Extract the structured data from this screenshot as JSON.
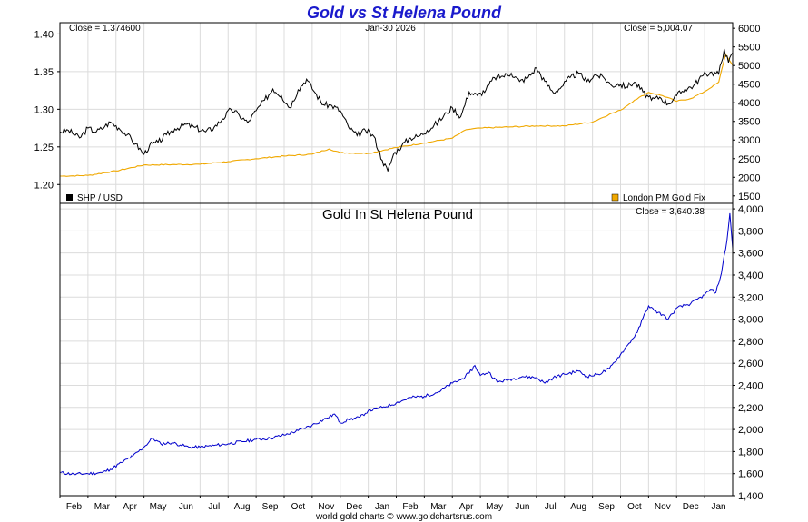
{
  "chart_data": {
    "title": "Gold vs St Helena Pound",
    "footer": "world gold charts © www.goldchartsrus.com",
    "months": [
      "Feb",
      "Mar",
      "Apr",
      "May",
      "Jun",
      "Jul",
      "Aug",
      "Sep",
      "Oct",
      "Nov",
      "Dec",
      "Jan",
      "Feb",
      "Mar",
      "Apr",
      "May",
      "Jun",
      "Jul",
      "Aug",
      "Sep",
      "Oct",
      "Nov",
      "Dec",
      "Jan"
    ],
    "charts": [
      {
        "type": "line",
        "name": "top-panel",
        "left_axis": {
          "min": 1.175,
          "max": 1.415,
          "ticks": [
            1.4,
            1.35,
            1.3,
            1.25,
            1.2
          ],
          "tick_labels": [
            "1.40",
            "1.35",
            "1.30",
            "1.25",
            "1.20"
          ]
        },
        "right_axis": {
          "min": 1300,
          "max": 6150,
          "ticks": [
            6000,
            5500,
            5000,
            4500,
            4000,
            3500,
            3000,
            2500,
            2000,
            1500
          ],
          "tick_labels": [
            "6000",
            "5500",
            "5000",
            "4500",
            "4000",
            "3500",
            "3000",
            "2500",
            "2000",
            "1500"
          ]
        },
        "close_left_label": "Close = 1.374600",
        "date_label": "Jan-30  2026",
        "close_right_label": "Close = 5,004.07",
        "legend": [
          {
            "label": "SHP / USD",
            "color": "#000000"
          },
          {
            "label": "London PM Gold Fix",
            "color": "#f0a800"
          }
        ],
        "series": [
          {
            "name": "SHP / USD",
            "axis": "left",
            "color": "#000000",
            "points": [
              [
                0,
                1.27
              ],
              [
                0.3,
                1.272
              ],
              [
                0.7,
                1.262
              ],
              [
                1.0,
                1.275
              ],
              [
                1.3,
                1.27
              ],
              [
                1.6,
                1.277
              ],
              [
                1.8,
                1.283
              ],
              [
                2.1,
                1.275
              ],
              [
                2.4,
                1.266
              ],
              [
                2.7,
                1.254
              ],
              [
                3.0,
                1.24
              ],
              [
                3.2,
                1.252
              ],
              [
                3.5,
                1.256
              ],
              [
                3.8,
                1.266
              ],
              [
                4.1,
                1.274
              ],
              [
                4.5,
                1.28
              ],
              [
                4.8,
                1.276
              ],
              [
                5.2,
                1.27
              ],
              [
                5.5,
                1.276
              ],
              [
                5.8,
                1.287
              ],
              [
                6.1,
                1.3
              ],
              [
                6.4,
                1.292
              ],
              [
                6.7,
                1.282
              ],
              [
                7.0,
                1.298
              ],
              [
                7.3,
                1.312
              ],
              [
                7.6,
                1.327
              ],
              [
                7.9,
                1.318
              ],
              [
                8.2,
                1.302
              ],
              [
                8.5,
                1.326
              ],
              [
                8.8,
                1.34
              ],
              [
                9.1,
                1.322
              ],
              [
                9.4,
                1.306
              ],
              [
                9.7,
                1.305
              ],
              [
                10.0,
                1.298
              ],
              [
                10.3,
                1.276
              ],
              [
                10.6,
                1.265
              ],
              [
                10.9,
                1.272
              ],
              [
                11.2,
                1.264
              ],
              [
                11.5,
                1.232
              ],
              [
                11.7,
                1.218
              ],
              [
                11.9,
                1.24
              ],
              [
                12.2,
                1.252
              ],
              [
                12.5,
                1.262
              ],
              [
                12.8,
                1.264
              ],
              [
                13.1,
                1.272
              ],
              [
                13.5,
                1.283
              ],
              [
                13.8,
                1.295
              ],
              [
                14.0,
                1.302
              ],
              [
                14.3,
                1.29
              ],
              [
                14.6,
                1.323
              ],
              [
                14.9,
                1.318
              ],
              [
                15.2,
                1.326
              ],
              [
                15.5,
                1.342
              ],
              [
                15.8,
                1.344
              ],
              [
                16.1,
                1.348
              ],
              [
                16.4,
                1.337
              ],
              [
                16.7,
                1.342
              ],
              [
                17.0,
                1.355
              ],
              [
                17.3,
                1.337
              ],
              [
                17.6,
                1.322
              ],
              [
                17.9,
                1.33
              ],
              [
                18.2,
                1.342
              ],
              [
                18.5,
                1.348
              ],
              [
                18.8,
                1.337
              ],
              [
                19.1,
                1.346
              ],
              [
                19.4,
                1.342
              ],
              [
                19.7,
                1.331
              ],
              [
                19.9,
                1.334
              ],
              [
                20.2,
                1.33
              ],
              [
                20.5,
                1.336
              ],
              [
                20.8,
                1.323
              ],
              [
                21.1,
                1.312
              ],
              [
                21.4,
                1.316
              ],
              [
                21.7,
                1.307
              ],
              [
                22.0,
                1.318
              ],
              [
                22.3,
                1.327
              ],
              [
                22.6,
                1.331
              ],
              [
                22.9,
                1.344
              ],
              [
                23.2,
                1.349
              ],
              [
                23.5,
                1.347
              ],
              [
                23.7,
                1.38
              ],
              [
                23.85,
                1.362
              ],
              [
                24.0,
                1.375
              ]
            ]
          },
          {
            "name": "London PM Gold Fix",
            "axis": "right",
            "color": "#f0a800",
            "points": [
              [
                0,
                2030
              ],
              [
                1,
                2050
              ],
              [
                2,
                2170
              ],
              [
                3,
                2330
              ],
              [
                4,
                2340
              ],
              [
                5,
                2350
              ],
              [
                6,
                2420
              ],
              [
                7,
                2500
              ],
              [
                8,
                2570
              ],
              [
                9,
                2620
              ],
              [
                9.6,
                2760
              ],
              [
                10,
                2660
              ],
              [
                11,
                2640
              ],
              [
                12,
                2800
              ],
              [
                13,
                2920
              ],
              [
                14,
                3050
              ],
              [
                14.5,
                3280
              ],
              [
                15,
                3320
              ],
              [
                16,
                3350
              ],
              [
                17,
                3380
              ],
              [
                18,
                3380
              ],
              [
                19,
                3480
              ],
              [
                19.6,
                3690
              ],
              [
                20,
                3800
              ],
              [
                20.5,
                4070
              ],
              [
                21,
                4280
              ],
              [
                21.5,
                4190
              ],
              [
                22,
                4040
              ],
              [
                22.5,
                4110
              ],
              [
                23,
                4300
              ],
              [
                23.5,
                4550
              ],
              [
                23.75,
                5300
              ],
              [
                24,
                5004
              ]
            ]
          }
        ]
      },
      {
        "type": "line",
        "name": "bottom-panel",
        "subtitle": "Gold In St Helena Pound",
        "close_right_label": "Close = 3,640.38",
        "right_axis": {
          "min": 1400,
          "max": 4050,
          "ticks": [
            4000,
            3800,
            3600,
            3400,
            3200,
            3000,
            2800,
            2600,
            2400,
            2200,
            2000,
            1800,
            1600,
            1400
          ],
          "tick_labels": [
            "4,000",
            "3,800",
            "3,600",
            "3,400",
            "3,200",
            "3,000",
            "2,800",
            "2,600",
            "2,400",
            "2,200",
            "2,000",
            "1,800",
            "1,600",
            "1,400"
          ]
        },
        "series": [
          {
            "name": "Gold In St Helena Pound",
            "axis": "right",
            "color": "#0000cc",
            "points": [
              [
                0,
                1610
              ],
              [
                0.5,
                1595
              ],
              [
                1.0,
                1600
              ],
              [
                1.5,
                1610
              ],
              [
                1.8,
                1640
              ],
              [
                2.2,
                1700
              ],
              [
                2.6,
                1760
              ],
              [
                3.0,
                1840
              ],
              [
                3.3,
                1920
              ],
              [
                3.6,
                1870
              ],
              [
                4.0,
                1880
              ],
              [
                4.3,
                1860
              ],
              [
                4.6,
                1840
              ],
              [
                5.0,
                1840
              ],
              [
                5.5,
                1855
              ],
              [
                6.0,
                1870
              ],
              [
                6.5,
                1890
              ],
              [
                7.0,
                1910
              ],
              [
                7.5,
                1920
              ],
              [
                8.0,
                1950
              ],
              [
                8.5,
                1990
              ],
              [
                9.0,
                2040
              ],
              [
                9.5,
                2100
              ],
              [
                9.8,
                2140
              ],
              [
                10.0,
                2060
              ],
              [
                10.3,
                2090
              ],
              [
                10.7,
                2110
              ],
              [
                11.0,
                2170
              ],
              [
                11.5,
                2200
              ],
              [
                12.0,
                2240
              ],
              [
                12.5,
                2290
              ],
              [
                13.0,
                2300
              ],
              [
                13.5,
                2340
              ],
              [
                14.0,
                2420
              ],
              [
                14.3,
                2450
              ],
              [
                14.6,
                2510
              ],
              [
                14.8,
                2580
              ],
              [
                15.0,
                2490
              ],
              [
                15.3,
                2520
              ],
              [
                15.6,
                2430
              ],
              [
                16.0,
                2450
              ],
              [
                16.5,
                2480
              ],
              [
                17.0,
                2470
              ],
              [
                17.3,
                2420
              ],
              [
                17.6,
                2470
              ],
              [
                18.0,
                2500
              ],
              [
                18.5,
                2530
              ],
              [
                18.8,
                2480
              ],
              [
                19.2,
                2500
              ],
              [
                19.6,
                2550
              ],
              [
                20.0,
                2680
              ],
              [
                20.3,
                2780
              ],
              [
                20.6,
                2880
              ],
              [
                20.8,
                3010
              ],
              [
                21.0,
                3120
              ],
              [
                21.2,
                3080
              ],
              [
                21.5,
                3040
              ],
              [
                21.7,
                3000
              ],
              [
                22.0,
                3100
              ],
              [
                22.5,
                3140
              ],
              [
                23.0,
                3220
              ],
              [
                23.2,
                3270
              ],
              [
                23.4,
                3240
              ],
              [
                23.6,
                3420
              ],
              [
                23.8,
                3720
              ],
              [
                23.9,
                3960
              ],
              [
                24.0,
                3640
              ]
            ]
          }
        ]
      }
    ]
  }
}
